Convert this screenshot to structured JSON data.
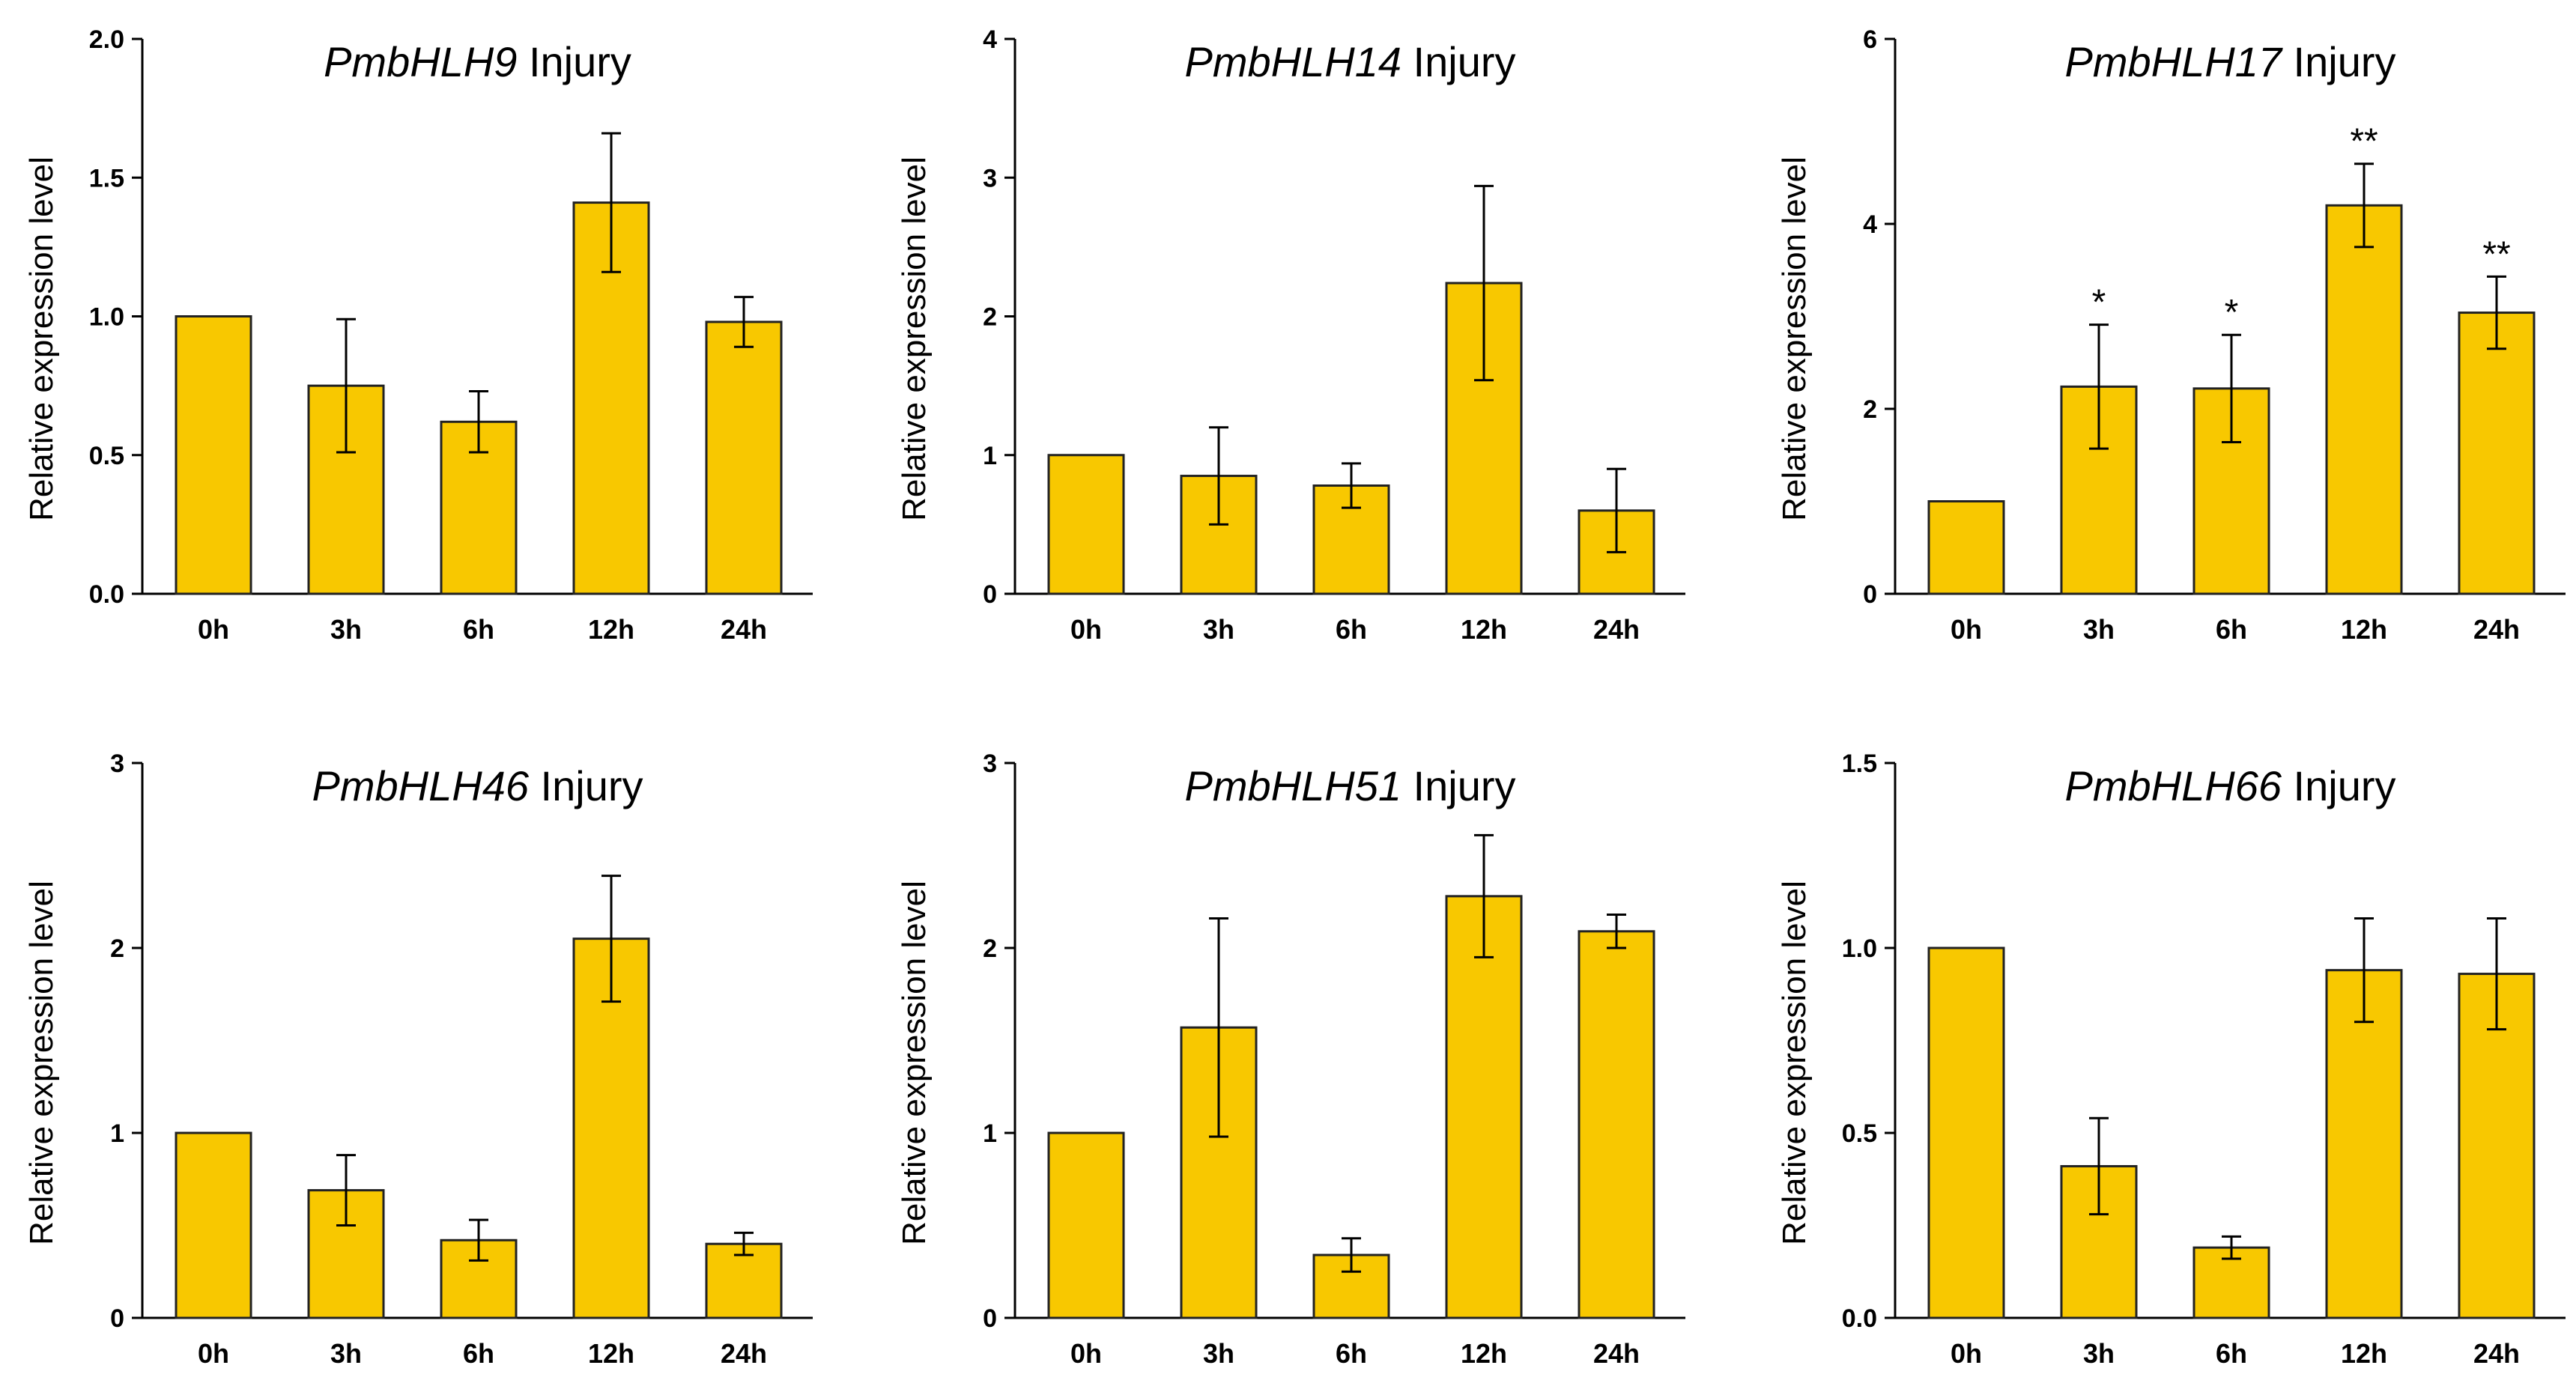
{
  "chart_data": [
    {
      "type": "bar",
      "title_gene": "PmbHLH9",
      "title_suffix": " Injury",
      "ylabel": "Relative expression level",
      "categories": [
        "0h",
        "3h",
        "6h",
        "12h",
        "24h"
      ],
      "values": [
        1.0,
        0.75,
        0.62,
        1.41,
        0.98
      ],
      "errors": [
        0.0,
        0.24,
        0.11,
        0.25,
        0.09
      ],
      "significance": [
        "",
        "",
        "",
        "",
        ""
      ],
      "ylim": [
        0,
        2.0
      ],
      "yticks": [
        0.0,
        0.5,
        1.0,
        1.5,
        2.0
      ],
      "ytick_labels": [
        "0.0",
        "0.5",
        "1.0",
        "1.5",
        "2.0"
      ]
    },
    {
      "type": "bar",
      "title_gene": "PmbHLH14",
      "title_suffix": " Injury",
      "ylabel": "Relative expression level",
      "categories": [
        "0h",
        "3h",
        "6h",
        "12h",
        "24h"
      ],
      "values": [
        1.0,
        0.85,
        0.78,
        2.24,
        0.6
      ],
      "errors": [
        0.0,
        0.35,
        0.16,
        0.7,
        0.3
      ],
      "significance": [
        "",
        "",
        "",
        "",
        ""
      ],
      "ylim": [
        0,
        4
      ],
      "yticks": [
        0,
        1,
        2,
        3,
        4
      ],
      "ytick_labels": [
        "0",
        "1",
        "2",
        "3",
        "4"
      ]
    },
    {
      "type": "bar",
      "title_gene": "PmbHLH17",
      "title_suffix": " Injury",
      "ylabel": "Relative expression level",
      "categories": [
        "0h",
        "3h",
        "6h",
        "12h",
        "24h"
      ],
      "values": [
        1.0,
        2.24,
        2.22,
        4.2,
        3.04
      ],
      "errors": [
        0.0,
        0.67,
        0.58,
        0.45,
        0.39
      ],
      "significance": [
        "",
        "*",
        "*",
        "**",
        "**"
      ],
      "ylim": [
        0,
        6
      ],
      "yticks": [
        0,
        2,
        4,
        6
      ],
      "ytick_labels": [
        "0",
        "2",
        "4",
        "6"
      ]
    },
    {
      "type": "bar",
      "title_gene": "PmbHLH46",
      "title_suffix": " Injury",
      "ylabel": "Relative expression level",
      "categories": [
        "0h",
        "3h",
        "6h",
        "12h",
        "24h"
      ],
      "values": [
        1.0,
        0.69,
        0.42,
        2.05,
        0.4
      ],
      "errors": [
        0.0,
        0.19,
        0.11,
        0.34,
        0.06
      ],
      "significance": [
        "",
        "",
        "",
        "",
        ""
      ],
      "ylim": [
        0,
        3
      ],
      "yticks": [
        0,
        1,
        2,
        3
      ],
      "ytick_labels": [
        "0",
        "1",
        "2",
        "3"
      ]
    },
    {
      "type": "bar",
      "title_gene": "PmbHLH51",
      "title_suffix": " Injury",
      "ylabel": "Relative expression level",
      "categories": [
        "0h",
        "3h",
        "6h",
        "12h",
        "24h"
      ],
      "values": [
        1.0,
        1.57,
        0.34,
        2.28,
        2.09
      ],
      "errors": [
        0.0,
        0.59,
        0.09,
        0.33,
        0.09
      ],
      "significance": [
        "",
        "",
        "",
        "",
        ""
      ],
      "ylim": [
        0,
        3
      ],
      "yticks": [
        0,
        1,
        2,
        3
      ],
      "ytick_labels": [
        "0",
        "1",
        "2",
        "3"
      ]
    },
    {
      "type": "bar",
      "title_gene": "PmbHLH66",
      "title_suffix": " Injury",
      "ylabel": "Relative expression level",
      "categories": [
        "0h",
        "3h",
        "6h",
        "12h",
        "24h"
      ],
      "values": [
        1.0,
        0.41,
        0.19,
        0.94,
        0.93
      ],
      "errors": [
        0.0,
        0.13,
        0.03,
        0.14,
        0.15
      ],
      "significance": [
        "",
        "",
        "",
        "",
        ""
      ],
      "ylim": [
        0,
        1.5
      ],
      "yticks": [
        0.0,
        0.5,
        1.0,
        1.5
      ],
      "ytick_labels": [
        "0.0",
        "0.5",
        "1.0",
        "1.5"
      ]
    }
  ],
  "colors": {
    "bar_fill": "#F8C800",
    "bar_stroke": "#222222",
    "axis": "#000000"
  }
}
